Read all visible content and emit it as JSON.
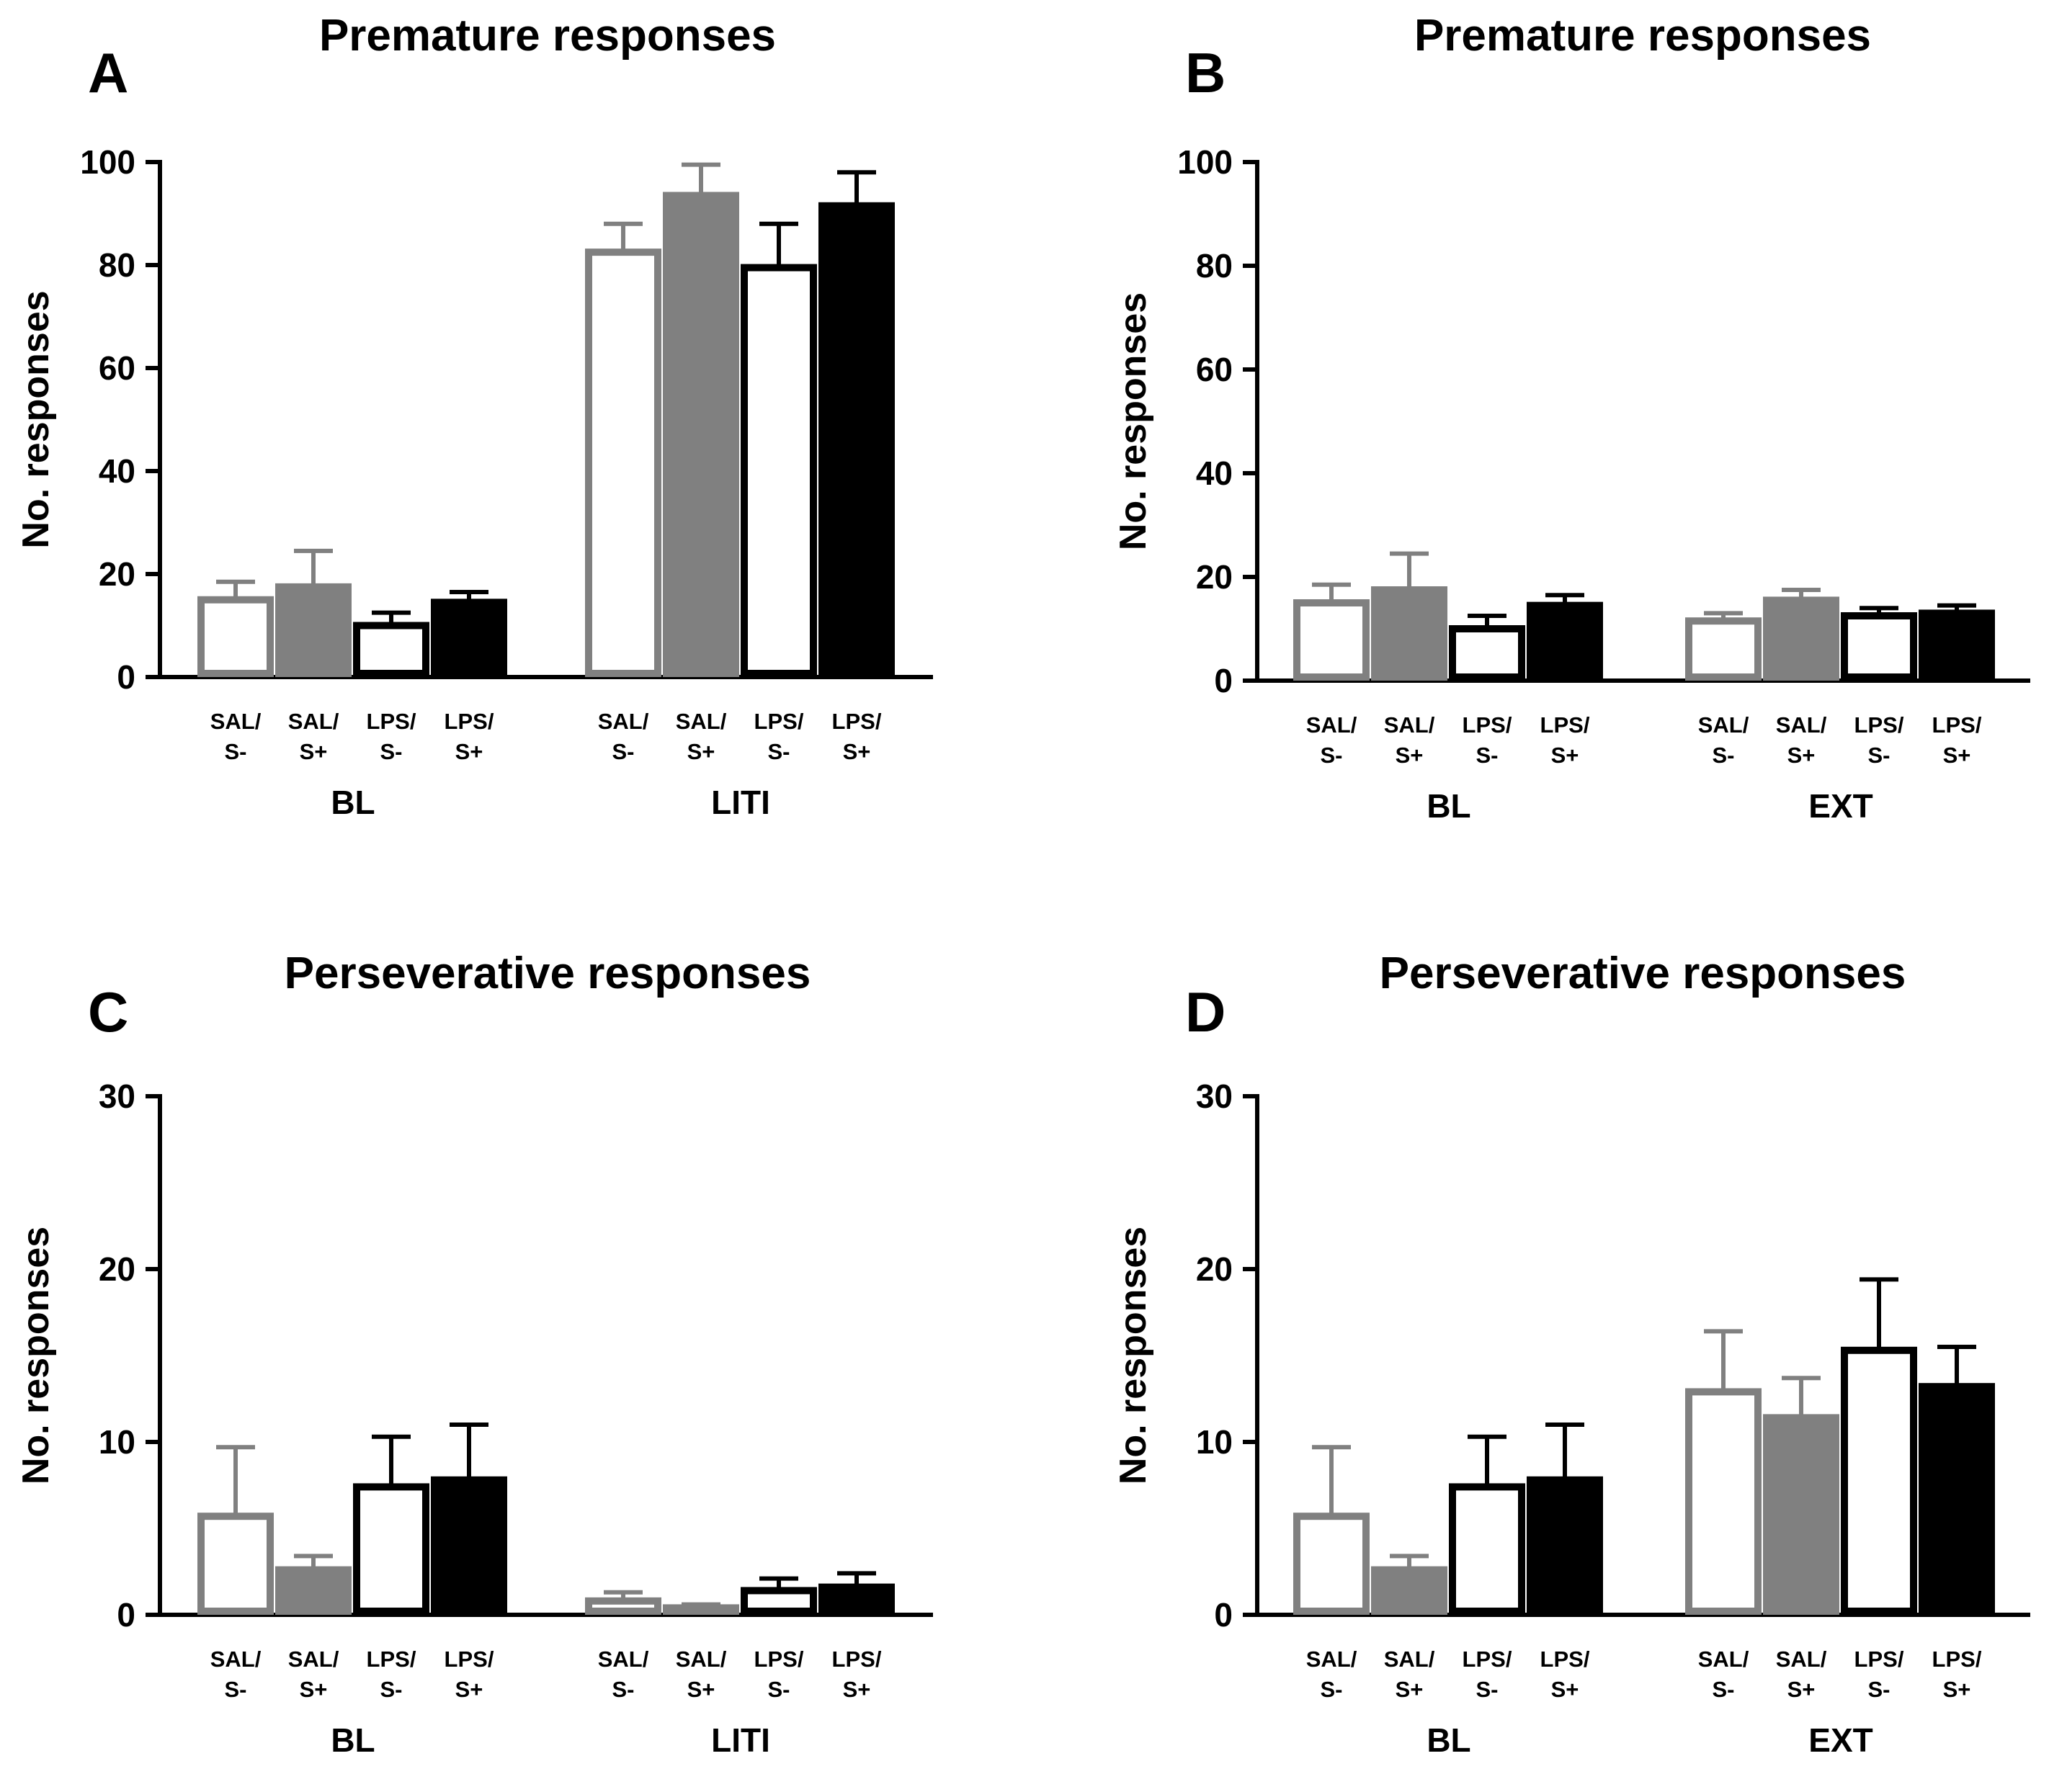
{
  "figure": {
    "panels": [
      {
        "letter": "A",
        "title": "Premature responses"
      },
      {
        "letter": "B",
        "title": "Premature responses"
      },
      {
        "letter": "C",
        "title": "Perseverative responses"
      },
      {
        "letter": "D",
        "title": "Perseverative responses"
      }
    ]
  },
  "colors": {
    "sal_s_minus": "#808080",
    "sal_s_plus": "#808080",
    "lps_s_minus": "#000000",
    "lps_s_plus": "#000000",
    "white": "#ffffff"
  },
  "chart_data": [
    {
      "type": "bar",
      "panel": "A",
      "title": "Premature responses",
      "ylabel": "No. responses",
      "ylim": [
        0,
        100
      ],
      "yticks": [
        "0",
        "20",
        "40",
        "60",
        "80",
        "100"
      ],
      "bar_labels": [
        [
          "SAL/",
          "S-"
        ],
        [
          "SAL/",
          "S+"
        ],
        [
          "LPS/",
          "S-"
        ],
        [
          "LPS/",
          "S+"
        ]
      ],
      "groups": [
        {
          "name": "BL",
          "values": [
            15,
            17.5,
            10,
            14.5
          ],
          "errors": [
            3.5,
            7,
            2.5,
            2
          ]
        },
        {
          "name": "LITI",
          "values": [
            82.5,
            93.5,
            79.5,
            91.5
          ],
          "errors": [
            5.5,
            6,
            8.5,
            6.5
          ]
        }
      ]
    },
    {
      "type": "bar",
      "panel": "B",
      "title": "Premature responses",
      "ylabel": "No. responses",
      "ylim": [
        0,
        100
      ],
      "yticks": [
        "0",
        "20",
        "40",
        "60",
        "80",
        "100"
      ],
      "bar_labels": [
        [
          "SAL/",
          "S-"
        ],
        [
          "SAL/",
          "S+"
        ],
        [
          "LPS/",
          "S-"
        ],
        [
          "LPS/",
          "S+"
        ]
      ],
      "groups": [
        {
          "name": "BL",
          "values": [
            15,
            17.5,
            10,
            14.5
          ],
          "errors": [
            3.5,
            7,
            2.5,
            2
          ]
        },
        {
          "name": "EXT",
          "values": [
            11.5,
            15.5,
            12.5,
            13
          ],
          "errors": [
            1.5,
            2,
            1.5,
            1.5
          ]
        }
      ]
    },
    {
      "type": "bar",
      "panel": "C",
      "title": "Perseverative responses",
      "ylabel": "No. responses",
      "ylim": [
        0,
        30
      ],
      "yticks": [
        "0",
        "10",
        "20",
        "30"
      ],
      "bar_labels": [
        [
          "SAL/",
          "S-"
        ],
        [
          "SAL/",
          "S+"
        ],
        [
          "LPS/",
          "S-"
        ],
        [
          "LPS/",
          "S+"
        ]
      ],
      "groups": [
        {
          "name": "BL",
          "values": [
            5.7,
            2.6,
            7.4,
            7.8
          ],
          "errors": [
            4,
            0.8,
            2.9,
            3.2
          ]
        },
        {
          "name": "LITI",
          "values": [
            0.8,
            0.4,
            1.4,
            1.6
          ],
          "errors": [
            0.5,
            0.2,
            0.7,
            0.8
          ]
        }
      ]
    },
    {
      "type": "bar",
      "panel": "D",
      "title": "Perseverative responses",
      "ylabel": "No. responses",
      "ylim": [
        0,
        30
      ],
      "yticks": [
        "0",
        "10",
        "20",
        "30"
      ],
      "bar_labels": [
        [
          "SAL/",
          "S-"
        ],
        [
          "SAL/",
          "S+"
        ],
        [
          "LPS/",
          "S-"
        ],
        [
          "LPS/",
          "S+"
        ]
      ],
      "groups": [
        {
          "name": "BL",
          "values": [
            5.7,
            2.6,
            7.4,
            7.8
          ],
          "errors": [
            4,
            0.8,
            2.9,
            3.2
          ]
        },
        {
          "name": "EXT",
          "values": [
            12.9,
            11.4,
            15.3,
            13.2
          ],
          "errors": [
            3.5,
            2.3,
            4.1,
            2.3
          ]
        }
      ]
    }
  ]
}
